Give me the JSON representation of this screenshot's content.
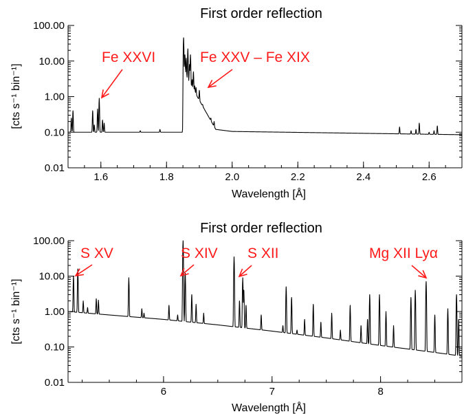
{
  "chart_data": [
    {
      "type": "line",
      "title": "First order reflection",
      "xlabel": "Wavelength [Å]",
      "ylabel": "[cts s⁻¹ bin⁻¹]",
      "xlim": [
        1.5,
        2.7
      ],
      "ylim": [
        0.01,
        100
      ],
      "y_scale": "log",
      "x_ticks": [
        1.6,
        1.8,
        2.0,
        2.2,
        2.4,
        2.6
      ],
      "x_tick_labels": [
        "1.6",
        "1.8",
        "2.0",
        "2.2",
        "2.4",
        "2.6"
      ],
      "y_ticks": [
        0.01,
        0.1,
        1,
        10,
        100
      ],
      "y_tick_labels": [
        "0.01",
        "0.10",
        "1.00",
        "10.00",
        "100.00"
      ],
      "continuum": [
        [
          1.5,
          0.1
        ],
        [
          1.85,
          0.1
        ],
        [
          1.851,
          5.0
        ],
        [
          1.95,
          0.12
        ],
        [
          2.0,
          0.105
        ],
        [
          2.7,
          0.085
        ]
      ],
      "lines": [
        [
          1.51,
          0.25
        ],
        [
          1.515,
          0.4
        ],
        [
          1.575,
          0.4
        ],
        [
          1.58,
          0.16
        ],
        [
          1.59,
          0.45
        ],
        [
          1.595,
          0.9
        ],
        [
          1.605,
          0.22
        ],
        [
          1.61,
          0.18
        ],
        [
          1.72,
          0.11
        ],
        [
          1.78,
          0.12
        ],
        [
          1.852,
          45.0
        ],
        [
          1.856,
          15.0
        ],
        [
          1.86,
          12.0
        ],
        [
          1.865,
          22.0
        ],
        [
          1.87,
          8.0
        ],
        [
          1.873,
          15.0
        ],
        [
          1.878,
          3.0
        ],
        [
          1.882,
          5.0
        ],
        [
          1.886,
          2.0
        ],
        [
          1.89,
          1.8
        ],
        [
          1.895,
          0.9
        ],
        [
          1.9,
          1.5
        ],
        [
          1.903,
          0.7
        ],
        [
          1.91,
          0.6
        ],
        [
          1.915,
          0.35
        ],
        [
          1.92,
          0.3
        ],
        [
          1.925,
          0.28
        ],
        [
          1.935,
          0.25
        ],
        [
          1.945,
          0.2
        ],
        [
          2.51,
          0.14
        ],
        [
          2.545,
          0.11
        ],
        [
          2.56,
          0.12
        ],
        [
          2.57,
          0.18
        ],
        [
          2.6,
          0.1
        ],
        [
          2.615,
          0.11
        ],
        [
          2.625,
          0.15
        ]
      ],
      "annotations": [
        {
          "text": "Fe XXVI",
          "target_x": 1.593,
          "target_y": 0.9
        },
        {
          "text": "Fe XXV – Fe XIX",
          "target_x": 1.88,
          "target_y": 1.8
        }
      ]
    },
    {
      "type": "line",
      "title": "First order reflection",
      "xlabel": "Wavelength [Å]",
      "ylabel": "[cts s⁻¹ bin⁻¹]",
      "xlim": [
        5.12,
        8.75
      ],
      "ylim": [
        0.01,
        100
      ],
      "y_scale": "log",
      "x_ticks": [
        6,
        7,
        8
      ],
      "x_tick_labels": [
        "6",
        "7",
        "8"
      ],
      "y_ticks": [
        0.01,
        0.1,
        1,
        10,
        100
      ],
      "y_tick_labels": [
        "0.01",
        "0.10",
        "1.00",
        "10.00",
        "100.00"
      ],
      "continuum": [
        [
          5.12,
          1.0
        ],
        [
          5.5,
          0.8
        ],
        [
          6.0,
          0.6
        ],
        [
          6.5,
          0.42
        ],
        [
          7.0,
          0.28
        ],
        [
          7.5,
          0.18
        ],
        [
          8.0,
          0.11
        ],
        [
          8.5,
          0.07
        ],
        [
          8.75,
          0.055
        ]
      ],
      "lines": [
        [
          5.17,
          10.0
        ],
        [
          5.21,
          16.0
        ],
        [
          5.26,
          2.0
        ],
        [
          5.3,
          1.3
        ],
        [
          5.38,
          2.3
        ],
        [
          5.4,
          2.1
        ],
        [
          5.68,
          9.0
        ],
        [
          5.8,
          1.2
        ],
        [
          5.82,
          0.9
        ],
        [
          6.05,
          1.5
        ],
        [
          6.13,
          0.8
        ],
        [
          6.18,
          100.0
        ],
        [
          6.2,
          12.0
        ],
        [
          6.26,
          3.0
        ],
        [
          6.3,
          1.6
        ],
        [
          6.37,
          0.9
        ],
        [
          6.65,
          35.0
        ],
        [
          6.7,
          2.0
        ],
        [
          6.73,
          9.0
        ],
        [
          6.74,
          4.0
        ],
        [
          6.76,
          1.5
        ],
        [
          6.9,
          0.8
        ],
        [
          7.1,
          0.4
        ],
        [
          7.13,
          5.0
        ],
        [
          7.18,
          2.5
        ],
        [
          7.23,
          0.3
        ],
        [
          7.3,
          0.6
        ],
        [
          7.38,
          1.6
        ],
        [
          7.45,
          0.5
        ],
        [
          7.55,
          0.9
        ],
        [
          7.63,
          0.3
        ],
        [
          7.72,
          1.5
        ],
        [
          7.82,
          0.4
        ],
        [
          7.88,
          0.6
        ],
        [
          7.9,
          3.0
        ],
        [
          7.99,
          3.0
        ],
        [
          8.05,
          1.0
        ],
        [
          8.12,
          0.4
        ],
        [
          8.28,
          2.5
        ],
        [
          8.32,
          4.0
        ],
        [
          8.42,
          7.0
        ],
        [
          8.5,
          0.8
        ],
        [
          8.62,
          1.2
        ],
        [
          8.7,
          3.0
        ],
        [
          8.72,
          0.6
        ]
      ],
      "annotations": [
        {
          "text": "S XV",
          "target_x": 5.2,
          "target_y": 8.0
        },
        {
          "text": "S XIV",
          "target_x": 6.19,
          "target_y": 8.0
        },
        {
          "text": "S XII",
          "target_x": 6.72,
          "target_y": 5.5
        },
        {
          "text": "Mg XII Lyα",
          "target_x": 8.42,
          "target_y": 7.0
        }
      ]
    }
  ]
}
